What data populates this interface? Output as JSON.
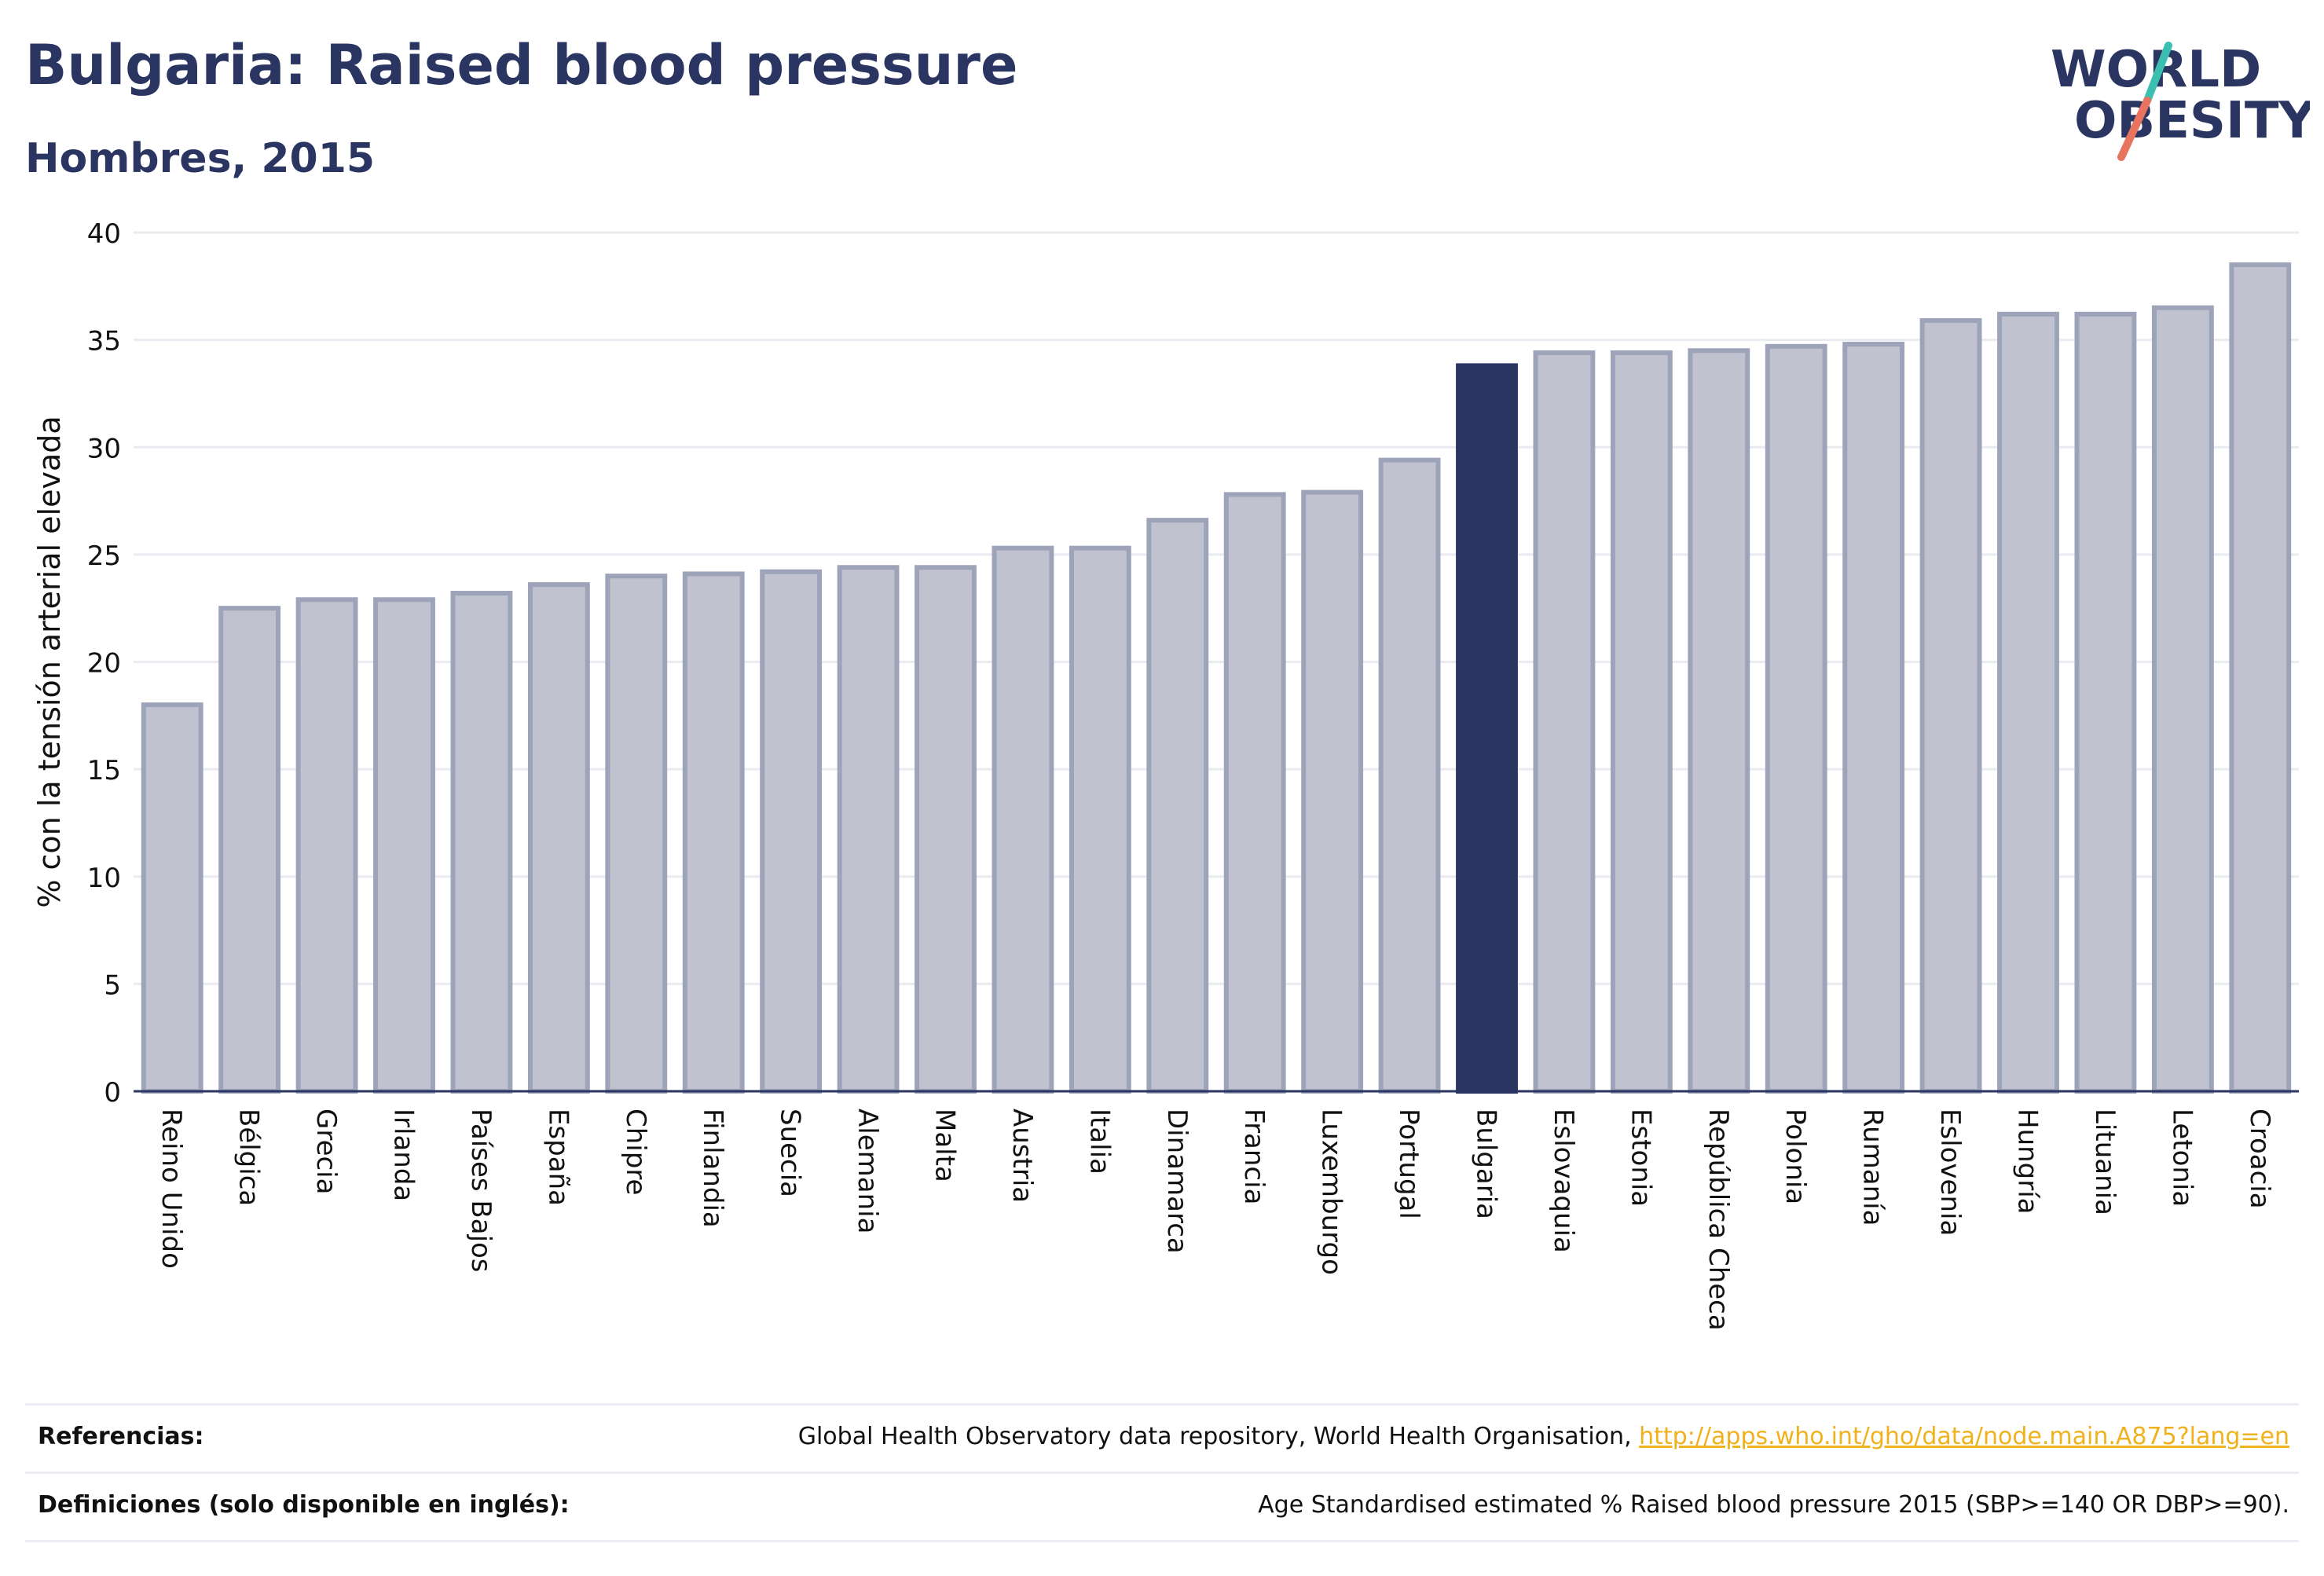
{
  "header": {
    "title": "Bulgaria: Raised blood pressure",
    "subtitle": "Hombres, 2015"
  },
  "logo": {
    "line1": "WORLD",
    "line2": "OBESITY",
    "accent_colors": [
      "#3bbfb0",
      "#e8735f"
    ],
    "text_color": "#2a3561"
  },
  "chart_data": {
    "type": "bar",
    "ylabel": "% con la tensión arterial elevada",
    "ylim": [
      0,
      40
    ],
    "yticks": [
      0,
      5,
      10,
      15,
      20,
      25,
      30,
      35,
      40
    ],
    "grid": true,
    "highlight": "Bulgaria",
    "colors": {
      "bar": "#c0c3cf",
      "bar_edge": "#9da3b8",
      "highlight": "#2a3561"
    },
    "categories": [
      "Reino Unido",
      "Bélgica",
      "Grecia",
      "Irlanda",
      "Países Bajos",
      "España",
      "Chipre",
      "Finlandia",
      "Suecia",
      "Alemania",
      "Malta",
      "Austria",
      "Italia",
      "Dinamarca",
      "Francia",
      "Luxemburgo",
      "Portugal",
      "Bulgaria",
      "Eslovaquia",
      "Estonia",
      "República Checa",
      "Polonia",
      "Rumanía",
      "Eslovenia",
      "Hungría",
      "Lituania",
      "Letonia",
      "Croacia"
    ],
    "values": [
      18.0,
      22.5,
      22.9,
      22.9,
      23.2,
      23.6,
      24.0,
      24.1,
      24.2,
      24.4,
      24.4,
      25.3,
      25.3,
      26.6,
      27.8,
      27.9,
      29.4,
      33.8,
      34.4,
      34.4,
      34.5,
      34.7,
      34.8,
      35.9,
      36.2,
      36.2,
      36.5,
      38.5
    ]
  },
  "references": {
    "label": "Referencias:",
    "text": "Global Health Observatory data repository, World Health Organisation, ",
    "link": "http://apps.who.int/gho/data/node.main.A875?lang=en"
  },
  "definitions": {
    "label": "Definiciones (solo disponible en inglés):",
    "text": "Age Standardised estimated % Raised blood pressure 2015 (SBP>=140 OR DBP>=90)."
  }
}
